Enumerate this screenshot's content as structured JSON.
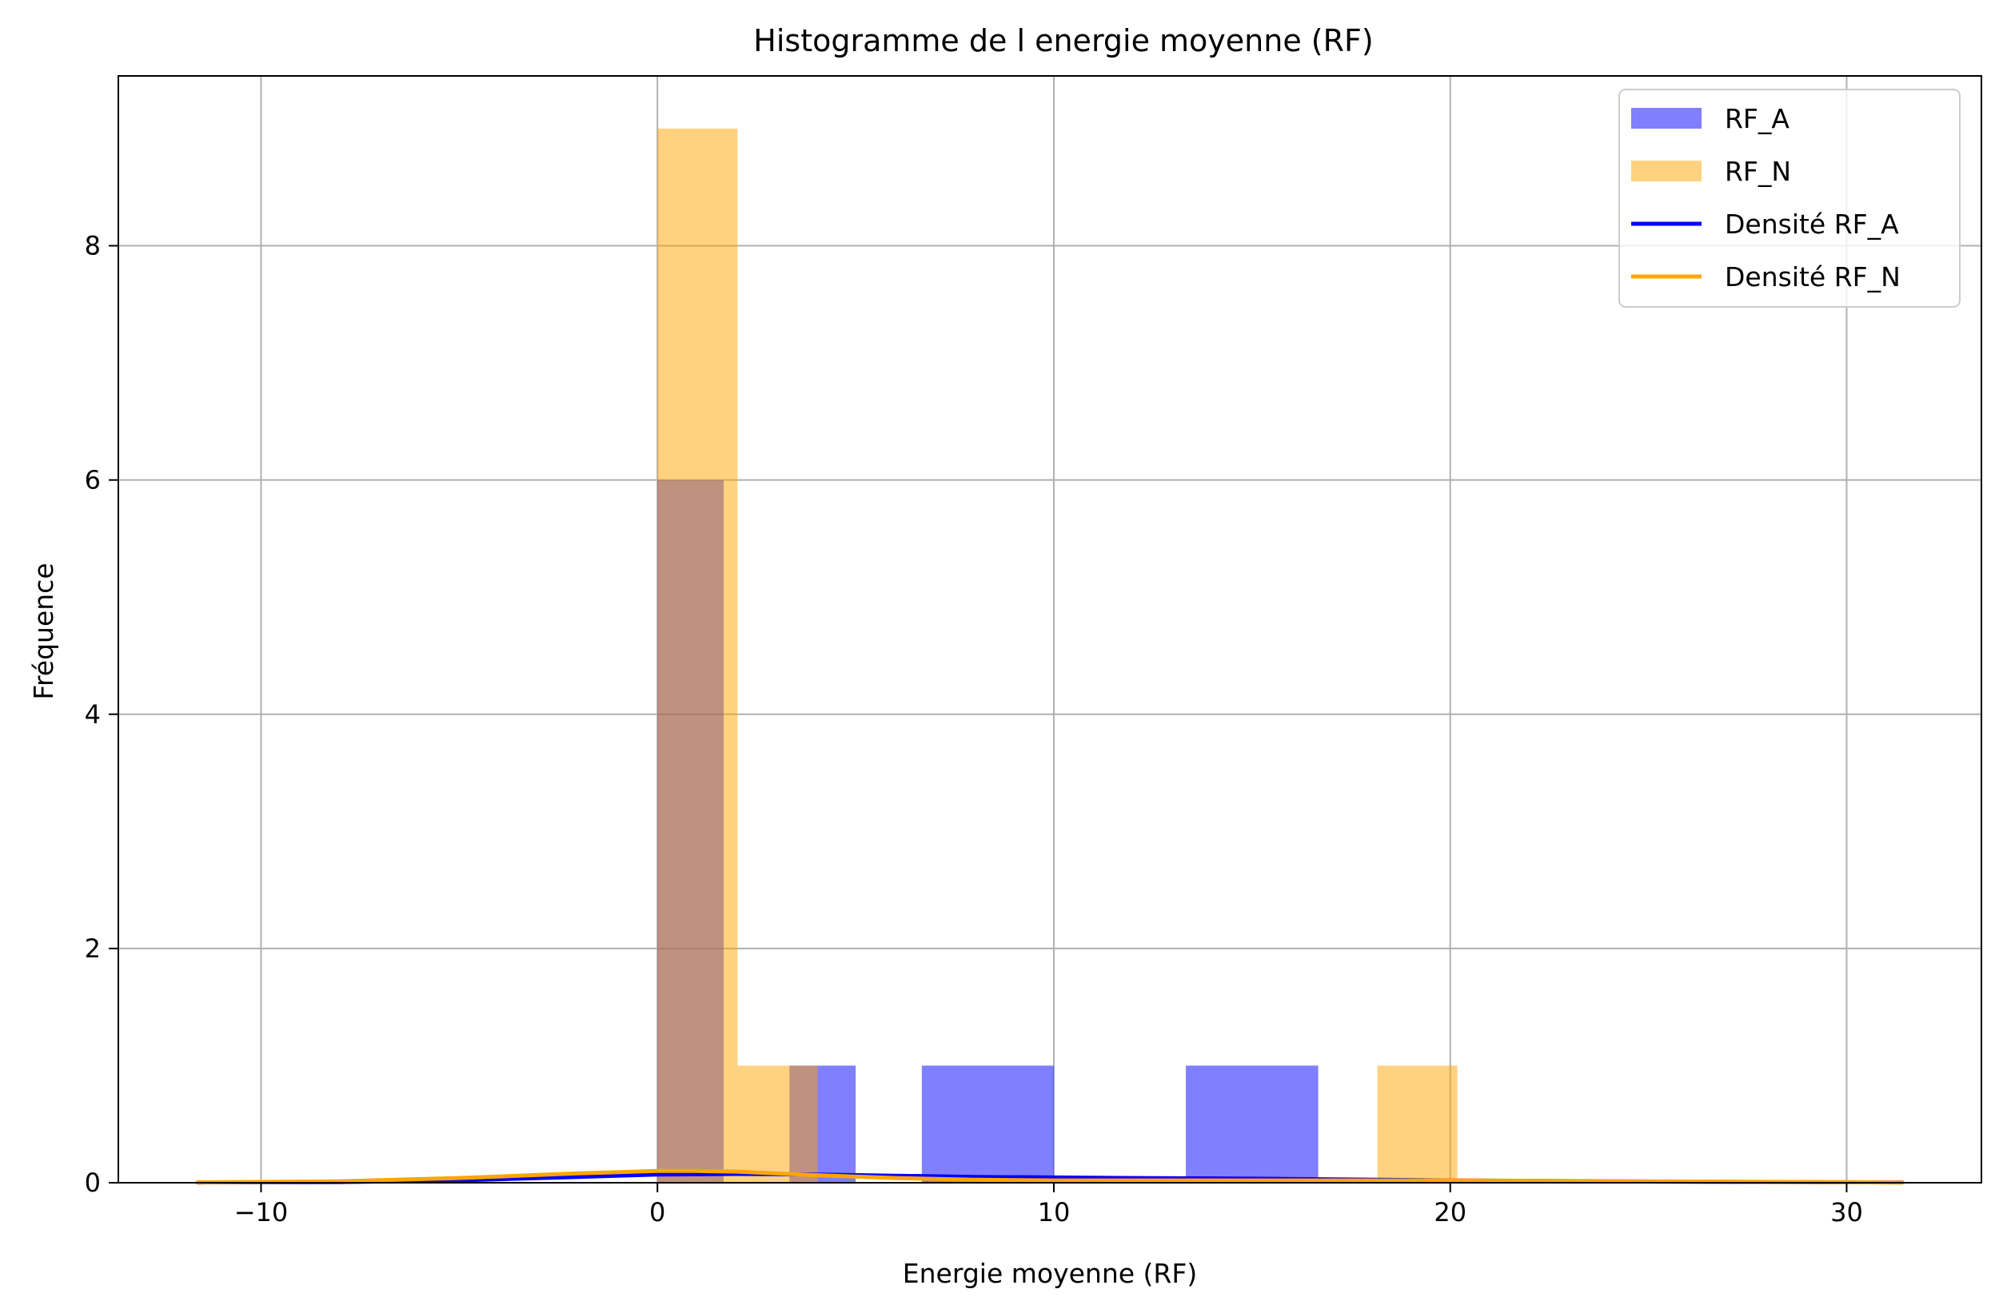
{
  "chart_data": {
    "type": "bar",
    "title": "Histogramme de l energie moyenne (RF)",
    "xlabel": "Energie moyenne (RF)",
    "ylabel": "Fréquence",
    "xlim": [
      -13.6,
      33.4
    ],
    "ylim": [
      0,
      9.45
    ],
    "x_ticks": [
      -10,
      0,
      10,
      20,
      30
    ],
    "x_tick_labels": [
      "−10",
      "0",
      "10",
      "20",
      "30"
    ],
    "y_ticks": [
      0,
      2,
      4,
      6,
      8
    ],
    "y_tick_labels": [
      "0",
      "2",
      "4",
      "6",
      "8"
    ],
    "grid": true,
    "legend_position": "top-right",
    "series": [
      {
        "name": "RF_A",
        "kind": "histogram",
        "color": "#0000ff",
        "opacity": 0.5,
        "bins": [
          {
            "x0": 0.0,
            "x1": 1.67,
            "count": 6
          },
          {
            "x0": 3.33,
            "x1": 5.0,
            "count": 1
          },
          {
            "x0": 6.67,
            "x1": 10.0,
            "count": 1
          },
          {
            "x0": 13.33,
            "x1": 16.67,
            "count": 1
          }
        ]
      },
      {
        "name": "RF_N",
        "kind": "histogram",
        "color": "#ffa500",
        "opacity": 0.5,
        "bins": [
          {
            "x0": 0.0,
            "x1": 2.02,
            "count": 9
          },
          {
            "x0": 2.02,
            "x1": 4.04,
            "count": 1
          },
          {
            "x0": 18.16,
            "x1": 20.18,
            "count": 1
          }
        ]
      },
      {
        "name": "Densité RF_A",
        "kind": "line",
        "color": "#0000ff",
        "x": [
          -11.6,
          -8,
          -5,
          -2,
          0,
          2,
          4,
          6,
          8,
          10,
          12,
          15,
          20,
          25,
          30,
          31.4
        ],
        "y": [
          0.002,
          0.006,
          0.02,
          0.05,
          0.07,
          0.075,
          0.07,
          0.06,
          0.05,
          0.045,
          0.04,
          0.035,
          0.02,
          0.01,
          0.004,
          0.003
        ]
      },
      {
        "name": "Densité RF_N",
        "kind": "line",
        "color": "#ffa500",
        "x": [
          -11.6,
          -8,
          -5,
          -2,
          0,
          1,
          2,
          4,
          6,
          8,
          10,
          12,
          15,
          20,
          25,
          30,
          31.4
        ],
        "y": [
          0.003,
          0.012,
          0.04,
          0.08,
          0.1,
          0.1,
          0.095,
          0.065,
          0.04,
          0.025,
          0.02,
          0.02,
          0.02,
          0.02,
          0.012,
          0.004,
          0.002
        ]
      }
    ]
  }
}
